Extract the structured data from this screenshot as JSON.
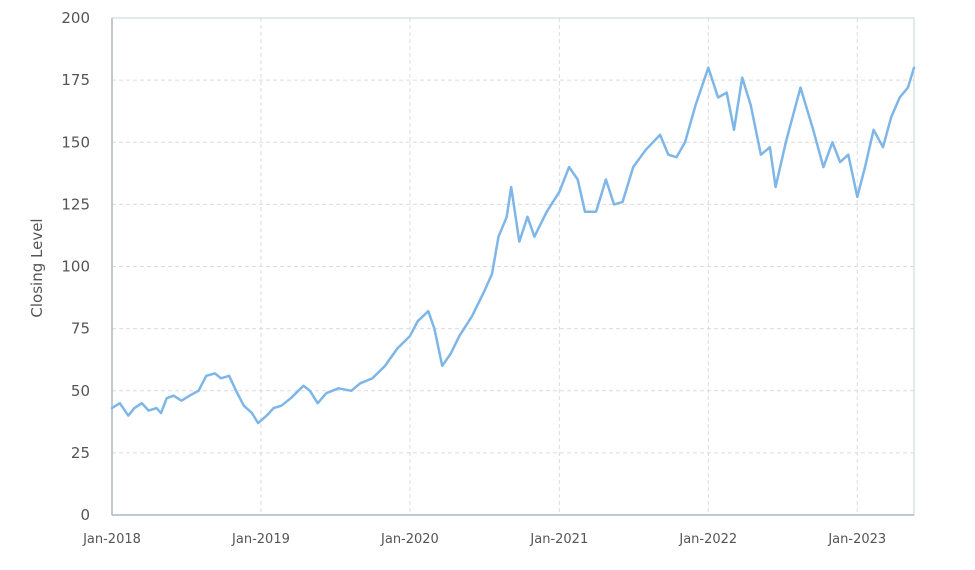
{
  "chart_data": {
    "type": "line",
    "title": "",
    "xlabel": "",
    "ylabel": "Closing Level",
    "ylim": [
      0,
      200
    ],
    "xlim": [
      "2018-01-01",
      "2023-05-20"
    ],
    "yticks": [
      0,
      25,
      50,
      75,
      100,
      125,
      150,
      175,
      200
    ],
    "ytick_labels": [
      "0",
      "25",
      "50",
      "75",
      "100",
      "125",
      "150",
      "175",
      "200"
    ],
    "xticks": [
      "2018-01-01",
      "2019-01-01",
      "2020-01-01",
      "2021-01-01",
      "2022-01-01",
      "2023-01-01"
    ],
    "xtick_labels": [
      "Jan-2018",
      "Jan-2019",
      "Jan-2020",
      "Jan-2021",
      "Jan-2022",
      "Jan-2023"
    ],
    "grid": true,
    "legend": "none",
    "colors": {
      "line": "#7EB6E8",
      "grid": "#dcdcdc",
      "frame": "#c9d3e0",
      "axis": "#aab7c8",
      "text": "#555555"
    },
    "series": [
      {
        "points": [
          [
            "2018-01-01",
            43
          ],
          [
            "2018-01-20",
            45
          ],
          [
            "2018-02-10",
            40
          ],
          [
            "2018-02-25",
            43
          ],
          [
            "2018-03-15",
            45
          ],
          [
            "2018-04-01",
            42
          ],
          [
            "2018-04-20",
            43
          ],
          [
            "2018-05-01",
            41
          ],
          [
            "2018-05-15",
            47
          ],
          [
            "2018-06-01",
            48
          ],
          [
            "2018-06-20",
            46
          ],
          [
            "2018-07-10",
            48
          ],
          [
            "2018-08-01",
            50
          ],
          [
            "2018-08-20",
            56
          ],
          [
            "2018-09-10",
            57
          ],
          [
            "2018-09-25",
            55
          ],
          [
            "2018-10-15",
            56
          ],
          [
            "2018-11-01",
            50
          ],
          [
            "2018-11-20",
            44
          ],
          [
            "2018-12-10",
            41
          ],
          [
            "2018-12-25",
            37
          ],
          [
            "2019-01-15",
            40
          ],
          [
            "2019-02-01",
            43
          ],
          [
            "2019-02-20",
            44
          ],
          [
            "2019-03-15",
            47
          ],
          [
            "2019-04-15",
            52
          ],
          [
            "2019-05-01",
            50
          ],
          [
            "2019-05-20",
            45
          ],
          [
            "2019-06-10",
            49
          ],
          [
            "2019-07-10",
            51
          ],
          [
            "2019-08-10",
            50
          ],
          [
            "2019-09-01",
            53
          ],
          [
            "2019-10-01",
            55
          ],
          [
            "2019-11-01",
            60
          ],
          [
            "2019-12-01",
            67
          ],
          [
            "2020-01-01",
            72
          ],
          [
            "2020-01-20",
            78
          ],
          [
            "2020-02-15",
            82
          ],
          [
            "2020-03-01",
            75
          ],
          [
            "2020-03-20",
            60
          ],
          [
            "2020-04-10",
            65
          ],
          [
            "2020-05-01",
            72
          ],
          [
            "2020-06-01",
            80
          ],
          [
            "2020-07-01",
            90
          ],
          [
            "2020-07-20",
            97
          ],
          [
            "2020-08-05",
            112
          ],
          [
            "2020-08-25",
            120
          ],
          [
            "2020-09-05",
            132
          ],
          [
            "2020-09-25",
            110
          ],
          [
            "2020-10-15",
            120
          ],
          [
            "2020-11-01",
            112
          ],
          [
            "2020-12-01",
            122
          ],
          [
            "2021-01-01",
            130
          ],
          [
            "2021-01-25",
            140
          ],
          [
            "2021-02-15",
            135
          ],
          [
            "2021-03-05",
            122
          ],
          [
            "2021-04-01",
            122
          ],
          [
            "2021-04-25",
            135
          ],
          [
            "2021-05-15",
            125
          ],
          [
            "2021-06-05",
            126
          ],
          [
            "2021-07-01",
            140
          ],
          [
            "2021-08-01",
            147
          ],
          [
            "2021-09-05",
            153
          ],
          [
            "2021-09-25",
            145
          ],
          [
            "2021-10-15",
            144
          ],
          [
            "2021-11-05",
            150
          ],
          [
            "2021-12-01",
            165
          ],
          [
            "2022-01-01",
            180
          ],
          [
            "2022-01-25",
            168
          ],
          [
            "2022-02-15",
            170
          ],
          [
            "2022-03-05",
            155
          ],
          [
            "2022-03-25",
            176
          ],
          [
            "2022-04-15",
            165
          ],
          [
            "2022-05-10",
            145
          ],
          [
            "2022-06-01",
            148
          ],
          [
            "2022-06-15",
            132
          ],
          [
            "2022-07-10",
            150
          ],
          [
            "2022-08-15",
            172
          ],
          [
            "2022-09-15",
            155
          ],
          [
            "2022-10-10",
            140
          ],
          [
            "2022-11-01",
            150
          ],
          [
            "2022-11-20",
            142
          ],
          [
            "2022-12-10",
            145
          ],
          [
            "2023-01-01",
            128
          ],
          [
            "2023-01-20",
            140
          ],
          [
            "2023-02-10",
            155
          ],
          [
            "2023-03-05",
            148
          ],
          [
            "2023-03-25",
            160
          ],
          [
            "2023-04-15",
            168
          ],
          [
            "2023-05-05",
            172
          ],
          [
            "2023-05-20",
            180
          ]
        ]
      }
    ]
  }
}
